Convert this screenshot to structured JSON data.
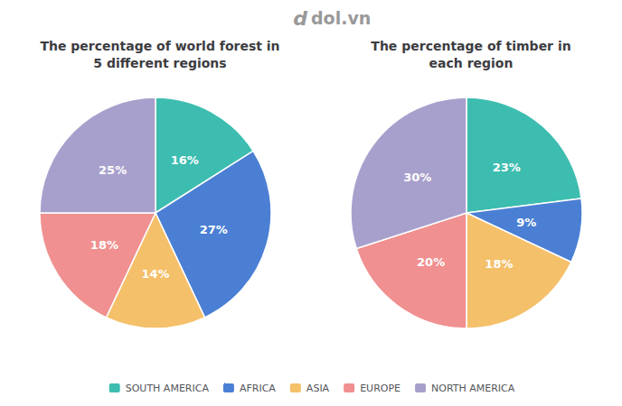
{
  "chart_data": [
    {
      "type": "pie",
      "title": "The percentage of world forest in\n5 different regions",
      "categories": [
        "SOUTH AMERICA",
        "AFRICA",
        "ASIA",
        "EUROPE",
        "NORTH AMERICA"
      ],
      "values": [
        16,
        27,
        14,
        18,
        25
      ],
      "value_labels": [
        "16%",
        "27%",
        "14%",
        "18%",
        "25%"
      ],
      "colors": [
        "#3dbdb0",
        "#4a7fd4",
        "#f5c06a",
        "#f09090",
        "#a8a0cc"
      ],
      "data_labels": true,
      "legend": "bottom",
      "annotations": [
        "d",
        "dol.vn"
      ]
    },
    {
      "type": "pie",
      "title": "The percentage of timber in\neach region",
      "categories": [
        "SOUTH AMERICA",
        "AFRICA",
        "ASIA",
        "EUROPE",
        "NORTH AMERICA"
      ],
      "values": [
        23,
        9,
        18,
        20,
        30
      ],
      "value_labels": [
        "23%",
        "9%",
        "18%",
        "20%",
        "30%"
      ],
      "colors": [
        "#3dbdb0",
        "#4a7fd4",
        "#f5c06a",
        "#f09090",
        "#a8a0cc"
      ],
      "data_labels": true,
      "legend": "bottom"
    }
  ]
}
